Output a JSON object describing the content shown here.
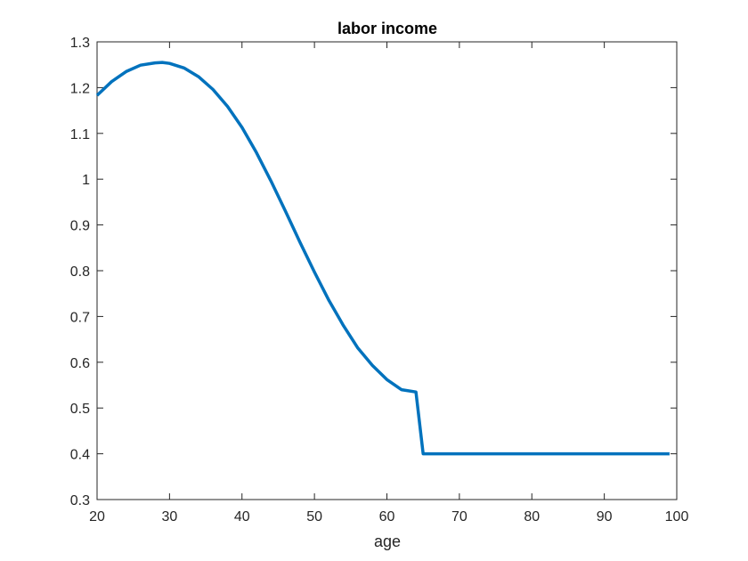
{
  "chart_data": {
    "type": "line",
    "title": "labor income",
    "xlabel": "age",
    "ylabel": "",
    "xlim": [
      20,
      100
    ],
    "ylim": [
      0.3,
      1.3
    ],
    "xticks": [
      "20",
      "30",
      "40",
      "50",
      "60",
      "70",
      "80",
      "90",
      "100"
    ],
    "yticks": [
      "0.3",
      "0.4",
      "0.5",
      "0.6",
      "0.7",
      "0.8",
      "0.9",
      "1",
      "1.1",
      "1.2",
      "1.3"
    ],
    "grid": false,
    "line_color": "#0072BD",
    "series": [
      {
        "name": "",
        "x": [
          20,
          22,
          24,
          26,
          28,
          29,
          30,
          32,
          34,
          36,
          38,
          40,
          42,
          44,
          46,
          48,
          50,
          52,
          54,
          56,
          58,
          60,
          62,
          64,
          65,
          70,
          80,
          90,
          99
        ],
        "y": [
          1.183,
          1.213,
          1.235,
          1.249,
          1.254,
          1.255,
          1.253,
          1.243,
          1.224,
          1.196,
          1.159,
          1.113,
          1.058,
          0.996,
          0.93,
          0.862,
          0.797,
          0.735,
          0.68,
          0.631,
          0.593,
          0.562,
          0.54,
          0.535,
          0.4,
          0.4,
          0.4,
          0.4,
          0.4
        ]
      }
    ]
  }
}
